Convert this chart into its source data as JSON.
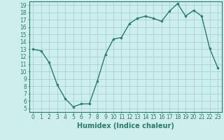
{
  "x": [
    0,
    1,
    2,
    3,
    4,
    5,
    6,
    7,
    8,
    9,
    10,
    11,
    12,
    13,
    14,
    15,
    16,
    17,
    18,
    19,
    20,
    21,
    22,
    23
  ],
  "y": [
    13,
    12.8,
    11.2,
    8.2,
    6.3,
    5.2,
    5.6,
    5.6,
    8.7,
    12.3,
    14.4,
    14.6,
    16.5,
    17.2,
    17.5,
    17.2,
    16.8,
    18.2,
    19.2,
    17.5,
    18.3,
    17.5,
    13.1,
    10.5
  ],
  "line_color": "#2a7a6a",
  "marker": "o",
  "markersize": 2.0,
  "linewidth": 1.0,
  "bg_color": "#cdeeed",
  "grid_color": "#9ecece",
  "xlabel": "Humidex (Indice chaleur)",
  "xlabel_fontsize": 7,
  "tick_fontsize": 5.5,
  "xlim": [
    -0.5,
    23.5
  ],
  "ylim": [
    4.5,
    19.5
  ],
  "yticks": [
    5,
    6,
    7,
    8,
    9,
    10,
    11,
    12,
    13,
    14,
    15,
    16,
    17,
    18,
    19
  ],
  "xticks": [
    0,
    1,
    2,
    3,
    4,
    5,
    6,
    7,
    8,
    9,
    10,
    11,
    12,
    13,
    14,
    15,
    16,
    17,
    18,
    19,
    20,
    21,
    22,
    23
  ]
}
